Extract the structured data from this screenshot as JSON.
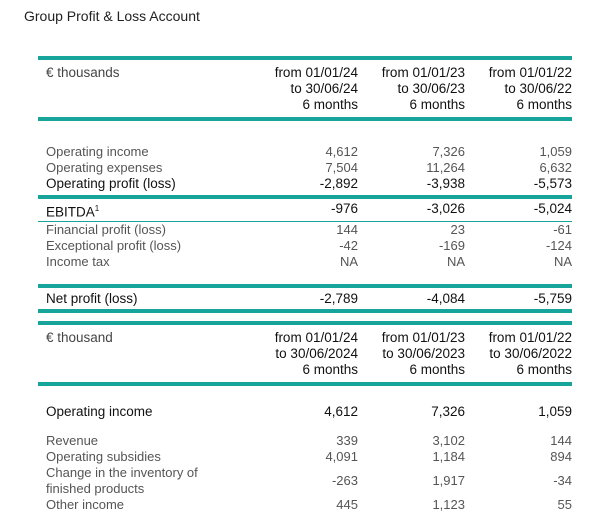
{
  "title": "Group Profit & Loss Account",
  "table1": {
    "unit": "€ thousands",
    "columns": [
      {
        "line1": "from 01/01/24",
        "line2": "to 30/06/24",
        "line3": "6 months"
      },
      {
        "line1": "from 01/01/23",
        "line2": "to 30/06/23",
        "line3": "6 months"
      },
      {
        "line1": "from 01/01/22",
        "line2": "to 30/06/22",
        "line3": "6 months"
      }
    ],
    "rows": [
      {
        "label": "Operating income",
        "values": [
          "4,612",
          "7,326",
          "1,059"
        ]
      },
      {
        "label": "Operating expenses",
        "values": [
          "7,504",
          "11,264",
          "6,632"
        ]
      },
      {
        "label": "Operating profit (loss)",
        "values": [
          "-2,892",
          "-3,938",
          "-5,573"
        ]
      },
      {
        "label": "EBITDA",
        "sup": "1",
        "values": [
          "-976",
          "-3,026",
          "-5,024"
        ]
      },
      {
        "label": "Financial profit (loss)",
        "values": [
          "144",
          "23",
          "-61"
        ]
      },
      {
        "label": "Exceptional profit (loss)",
        "values": [
          "-42",
          "-169",
          "-124"
        ]
      },
      {
        "label": "Income tax",
        "values": [
          "NA",
          "NA",
          "NA"
        ]
      },
      {
        "label": "Net profit (loss)",
        "values": [
          "-2,789",
          "-4,084",
          "-5,759"
        ]
      }
    ]
  },
  "table2": {
    "unit": "€ thousand",
    "columns": [
      {
        "line1": "from 01/01/24",
        "line2": "to 30/06/2024",
        "line3": "6 months"
      },
      {
        "line1": "from 01/01/23",
        "line2": "to 30/06/2023",
        "line3": "6 months"
      },
      {
        "line1": "from 01/01/22",
        "line2": "to 30/06/2022",
        "line3": "6 months"
      }
    ],
    "rows": [
      {
        "label": "Operating income",
        "values": [
          "4,612",
          "7,326",
          "1,059"
        ]
      },
      {
        "label": "Revenue",
        "values": [
          "339",
          "3,102",
          "144"
        ]
      },
      {
        "label": "Operating subsidies",
        "values": [
          "4,091",
          "1,184",
          "894"
        ]
      },
      {
        "label": "Change in the inventory of",
        "label2": "finished products",
        "values": [
          "-263",
          "1,917",
          "-34"
        ]
      },
      {
        "label": "Other income",
        "values": [
          "445",
          "1,123",
          "55"
        ]
      }
    ]
  }
}
